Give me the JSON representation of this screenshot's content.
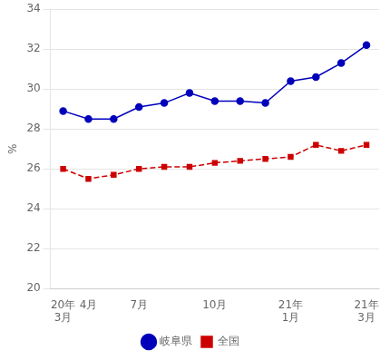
{
  "chart_data": {
    "type": "line",
    "y_label": "%",
    "categories": [
      "20年\n3月",
      "4月",
      null,
      "7月",
      null,
      null,
      "10月",
      null,
      null,
      "21年\n1月",
      null,
      null,
      "21年\n3月"
    ],
    "series": [
      {
        "name": "岐阜県",
        "color": "#0000bb",
        "marker": "circle",
        "line_style": "solid",
        "values": [
          28.9,
          28.5,
          28.5,
          29.1,
          29.3,
          29.8,
          29.4,
          29.4,
          29.3,
          30.4,
          30.6,
          31.3,
          32.2
        ]
      },
      {
        "name": "全国",
        "color": "#cc0000",
        "marker": "square",
        "line_style": "dashed",
        "values": [
          26.0,
          25.5,
          25.7,
          26.0,
          26.1,
          26.1,
          26.3,
          26.4,
          26.5,
          26.6,
          27.2,
          26.9,
          27.2
        ]
      }
    ],
    "ylim": [
      20,
      34
    ],
    "yticks": [
      20,
      22,
      24,
      26,
      28,
      30,
      32,
      34
    ],
    "grid": "y",
    "legend": "bottom"
  }
}
